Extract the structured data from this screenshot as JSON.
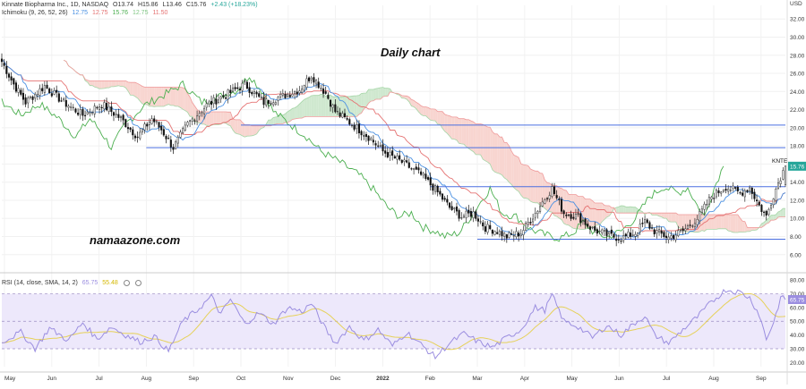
{
  "header": {
    "symbol_line": "Kinnate Biopharma Inc., 1D, NASDAQ",
    "ohlc": [
      "O13.74",
      "H15.86",
      "L13.46",
      "C15.76",
      "+2.43 (+18.23%)"
    ],
    "ichimoku_label": "Ichimoku (9, 26, 52, 26)",
    "ichimoku_values": [
      "12.75",
      "12.75",
      "15.76",
      "12.75",
      "11.50"
    ],
    "rsi_label": "RSI (14, close, SMA, 14, 2)",
    "rsi_values": [
      "65.75",
      "55.48"
    ]
  },
  "annotations": {
    "title": "Daily chart",
    "watermark": "namaazone.com",
    "ticker_tag": "KNTE"
  },
  "colors": {
    "up": "#26a69a",
    "down": "#111111",
    "kijun": "#e57373",
    "tenkan": "#4a90e2",
    "chikou": "#4caf50",
    "cloud_bull": "#cfe8cf",
    "cloud_bear": "#f8d5d0",
    "rsi": "#9b8ee0",
    "rsi_ma": "#e6d15a",
    "hline": "#4a6fe0"
  },
  "chart_data": [
    {
      "type": "line",
      "name": "price",
      "title": "Daily chart",
      "currency": "USD",
      "x_ticks": [
        "May",
        "Jun",
        "Jul",
        "Aug",
        "Sep",
        "Oct",
        "Nov",
        "Dec",
        "2022",
        "Feb",
        "Mar",
        "Apr",
        "May",
        "Jun",
        "Jul",
        "Aug",
        "Sep"
      ],
      "y_ticks": [
        "32.00",
        "30.00",
        "28.00",
        "26.00",
        "24.00",
        "22.00",
        "20.00",
        "18.00",
        "16.00",
        "14.00",
        "12.00",
        "10.00",
        "8.00",
        "6.00"
      ],
      "ylim": [
        4.5,
        33.5
      ],
      "last_price": 15.76,
      "close_anchors": [
        {
          "x": 0,
          "y": 27.3
        },
        {
          "x": 5,
          "y": 24.8
        },
        {
          "x": 10,
          "y": 22.8
        },
        {
          "x": 18,
          "y": 24.6
        },
        {
          "x": 26,
          "y": 22.8
        },
        {
          "x": 34,
          "y": 21.4
        },
        {
          "x": 42,
          "y": 22.6
        },
        {
          "x": 50,
          "y": 21.0
        },
        {
          "x": 57,
          "y": 19.0
        },
        {
          "x": 63,
          "y": 21.0
        },
        {
          "x": 67,
          "y": 19.8
        },
        {
          "x": 72,
          "y": 17.8
        },
        {
          "x": 78,
          "y": 20.4
        },
        {
          "x": 86,
          "y": 22.5
        },
        {
          "x": 94,
          "y": 23.6
        },
        {
          "x": 102,
          "y": 24.8
        },
        {
          "x": 110,
          "y": 22.8
        },
        {
          "x": 118,
          "y": 23.5
        },
        {
          "x": 125,
          "y": 24.2
        },
        {
          "x": 130,
          "y": 25.8
        },
        {
          "x": 136,
          "y": 23.8
        },
        {
          "x": 140,
          "y": 21.8
        },
        {
          "x": 147,
          "y": 20.4
        },
        {
          "x": 154,
          "y": 19.0
        },
        {
          "x": 160,
          "y": 17.4
        },
        {
          "x": 168,
          "y": 16.2
        },
        {
          "x": 176,
          "y": 14.8
        },
        {
          "x": 182,
          "y": 13.2
        },
        {
          "x": 188,
          "y": 11.2
        },
        {
          "x": 193,
          "y": 10.2
        },
        {
          "x": 198,
          "y": 10.6
        },
        {
          "x": 203,
          "y": 9.0
        },
        {
          "x": 208,
          "y": 8.6
        },
        {
          "x": 212,
          "y": 8.0
        },
        {
          "x": 218,
          "y": 8.4
        },
        {
          "x": 224,
          "y": 10.6
        },
        {
          "x": 228,
          "y": 12.2
        },
        {
          "x": 231,
          "y": 13.3
        },
        {
          "x": 236,
          "y": 10.6
        },
        {
          "x": 242,
          "y": 10.2
        },
        {
          "x": 248,
          "y": 8.8
        },
        {
          "x": 254,
          "y": 8.2
        },
        {
          "x": 260,
          "y": 7.8
        },
        {
          "x": 266,
          "y": 8.4
        },
        {
          "x": 270,
          "y": 9.6
        },
        {
          "x": 274,
          "y": 8.6
        },
        {
          "x": 280,
          "y": 7.9
        },
        {
          "x": 286,
          "y": 8.6
        },
        {
          "x": 292,
          "y": 10.0
        },
        {
          "x": 298,
          "y": 12.4
        },
        {
          "x": 304,
          "y": 13.5
        },
        {
          "x": 310,
          "y": 12.8
        },
        {
          "x": 314,
          "y": 13.4
        },
        {
          "x": 318,
          "y": 11.4
        },
        {
          "x": 321,
          "y": 10.2
        },
        {
          "x": 324,
          "y": 12.6
        },
        {
          "x": 327,
          "y": 14.6
        },
        {
          "x": 329,
          "y": 15.76
        }
      ],
      "horizontal_levels": [
        {
          "y": 20.3,
          "from": "Oct"
        },
        {
          "y": 17.8,
          "from": "Aug"
        },
        {
          "y": 13.5,
          "from": "Feb"
        },
        {
          "y": 7.7,
          "from": "Mar"
        }
      ]
    },
    {
      "type": "line",
      "name": "rsi",
      "y_ticks": [
        "80.00",
        "70.00",
        "60.00",
        "50.00",
        "40.00",
        "30.00",
        "20.00"
      ],
      "ylim": [
        17,
        82
      ],
      "band": [
        30,
        70
      ],
      "midline": 50,
      "last_value": 65.75,
      "ma_last": 55.48,
      "rsi_anchors": [
        {
          "x": 0,
          "y": 35
        },
        {
          "x": 8,
          "y": 42
        },
        {
          "x": 14,
          "y": 30
        },
        {
          "x": 20,
          "y": 45
        },
        {
          "x": 28,
          "y": 36
        },
        {
          "x": 34,
          "y": 49
        },
        {
          "x": 40,
          "y": 37
        },
        {
          "x": 46,
          "y": 46
        },
        {
          "x": 52,
          "y": 40
        },
        {
          "x": 58,
          "y": 35
        },
        {
          "x": 64,
          "y": 39
        },
        {
          "x": 70,
          "y": 28
        },
        {
          "x": 76,
          "y": 50
        },
        {
          "x": 82,
          "y": 58
        },
        {
          "x": 88,
          "y": 68
        },
        {
          "x": 92,
          "y": 55
        },
        {
          "x": 96,
          "y": 66
        },
        {
          "x": 102,
          "y": 48
        },
        {
          "x": 108,
          "y": 56
        },
        {
          "x": 114,
          "y": 48
        },
        {
          "x": 120,
          "y": 60
        },
        {
          "x": 126,
          "y": 57
        },
        {
          "x": 130,
          "y": 63
        },
        {
          "x": 136,
          "y": 44
        },
        {
          "x": 140,
          "y": 34
        },
        {
          "x": 146,
          "y": 46
        },
        {
          "x": 152,
          "y": 36
        },
        {
          "x": 158,
          "y": 44
        },
        {
          "x": 164,
          "y": 32
        },
        {
          "x": 170,
          "y": 42
        },
        {
          "x": 176,
          "y": 33
        },
        {
          "x": 182,
          "y": 24
        },
        {
          "x": 188,
          "y": 34
        },
        {
          "x": 194,
          "y": 41
        },
        {
          "x": 200,
          "y": 35
        },
        {
          "x": 206,
          "y": 31
        },
        {
          "x": 212,
          "y": 38
        },
        {
          "x": 218,
          "y": 44
        },
        {
          "x": 224,
          "y": 60
        },
        {
          "x": 228,
          "y": 58
        },
        {
          "x": 231,
          "y": 69
        },
        {
          "x": 236,
          "y": 50
        },
        {
          "x": 242,
          "y": 46
        },
        {
          "x": 248,
          "y": 38
        },
        {
          "x": 254,
          "y": 47
        },
        {
          "x": 260,
          "y": 40
        },
        {
          "x": 266,
          "y": 49
        },
        {
          "x": 270,
          "y": 54
        },
        {
          "x": 274,
          "y": 40
        },
        {
          "x": 280,
          "y": 34
        },
        {
          "x": 286,
          "y": 44
        },
        {
          "x": 292,
          "y": 53
        },
        {
          "x": 298,
          "y": 64
        },
        {
          "x": 304,
          "y": 73
        },
        {
          "x": 310,
          "y": 71
        },
        {
          "x": 314,
          "y": 67
        },
        {
          "x": 318,
          "y": 55
        },
        {
          "x": 321,
          "y": 37
        },
        {
          "x": 324,
          "y": 49
        },
        {
          "x": 327,
          "y": 67
        },
        {
          "x": 329,
          "y": 65.75
        }
      ]
    }
  ]
}
